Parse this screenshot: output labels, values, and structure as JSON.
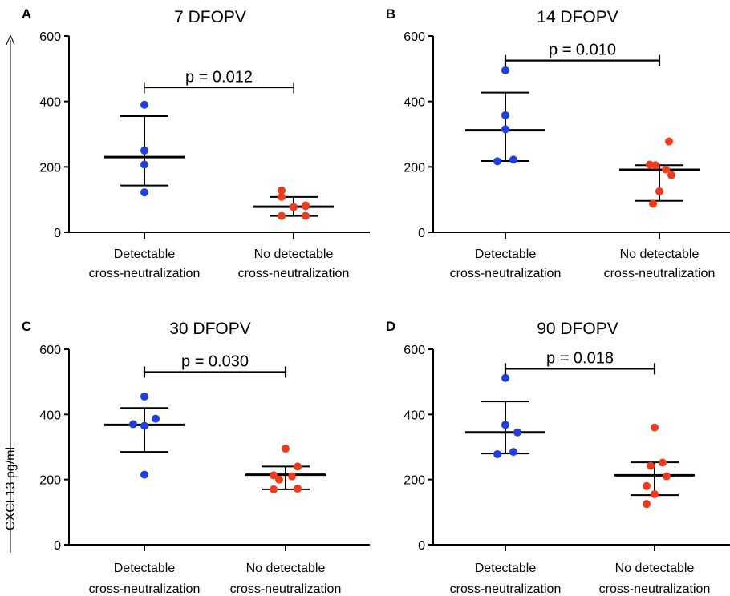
{
  "figure": {
    "ylabel": "CXCL13 pg/ml"
  },
  "chart_data": [
    {
      "type": "scatter",
      "panel_letter": "A",
      "title": "7 DFOPV",
      "ylim": [
        0,
        600
      ],
      "yticks": [
        "0",
        "200",
        "400",
        "600"
      ],
      "categories": [
        [
          "Detectable",
          "cross-neutralization"
        ],
        [
          "No detectable",
          "cross-neutralization"
        ]
      ],
      "series": [
        {
          "name": "Detectable cross-neutralization",
          "color": "#1f3fe6",
          "values": [
            390,
            250,
            207,
            122
          ],
          "mean": 230,
          "sd_low": 143,
          "sd_high": 355
        },
        {
          "name": "No detectable cross-neutralization",
          "color": "#f23a1a",
          "values": [
            128,
            108,
            82,
            80,
            77,
            50,
            50
          ],
          "mean": 78,
          "sd_low": 50,
          "sd_high": 108
        }
      ],
      "annotation": "p = 0.012",
      "bracket_y": 442,
      "bracket_style": "thin"
    },
    {
      "type": "scatter",
      "panel_letter": "B",
      "title": "14 DFOPV",
      "ylim": [
        0,
        600
      ],
      "yticks": [
        "0",
        "200",
        "400",
        "600"
      ],
      "categories": [
        [
          "Detectable",
          "cross-neutralization"
        ],
        [
          "No detectable",
          "cross-neutralization"
        ]
      ],
      "series": [
        {
          "name": "Detectable cross-neutralization",
          "color": "#1f3fe6",
          "values": [
            495,
            358,
            315,
            222,
            217
          ],
          "mean": 312,
          "sd_low": 218,
          "sd_high": 427
        },
        {
          "name": "No detectable cross-neutralization",
          "color": "#f23a1a",
          "values": [
            278,
            207,
            205,
            192,
            175,
            125,
            87
          ],
          "mean": 191,
          "sd_low": 96,
          "sd_high": 205
        }
      ],
      "annotation": "p = 0.010",
      "bracket_y": 525,
      "bracket_style": "thick"
    },
    {
      "type": "scatter",
      "panel_letter": "C",
      "title": "30 DFOPV",
      "ylim": [
        0,
        600
      ],
      "yticks": [
        "0",
        "200",
        "400",
        "600"
      ],
      "categories": [
        [
          "Detectable",
          "cross-neutralization"
        ],
        [
          "No detectable",
          "cross-neutralization"
        ]
      ],
      "series": [
        {
          "name": "Detectable cross-neutralization",
          "color": "#1f3fe6",
          "values": [
            455,
            387,
            370,
            365,
            215
          ],
          "mean": 368,
          "sd_low": 285,
          "sd_high": 420
        },
        {
          "name": "No detectable cross-neutralization",
          "color": "#f23a1a",
          "values": [
            295,
            240,
            213,
            210,
            200,
            172,
            170
          ],
          "mean": 215,
          "sd_low": 170,
          "sd_high": 240
        },
        {
          "name": "",
          "color": "#1f3fe6",
          "values": []
        }
      ],
      "annotation": "p = 0.030",
      "bracket_y": 530,
      "bracket_style": "thick"
    },
    {
      "type": "scatter",
      "panel_letter": "D",
      "title": "90 DFOPV",
      "ylim": [
        0,
        600
      ],
      "yticks": [
        "0",
        "200",
        "400",
        "600"
      ],
      "categories": [
        [
          "Detectable",
          "cross-neutralization"
        ],
        [
          "No detectable",
          "cross-neutralization"
        ]
      ],
      "series": [
        {
          "name": "Detectable cross-neutralization",
          "color": "#1f3fe6",
          "values": [
            512,
            368,
            345,
            285,
            278
          ],
          "mean": 345,
          "sd_low": 280,
          "sd_high": 440
        },
        {
          "name": "No detectable cross-neutralization",
          "color": "#f23a1a",
          "values": [
            360,
            252,
            242,
            210,
            180,
            155,
            125
          ],
          "mean": 213,
          "sd_low": 152,
          "sd_high": 253
        }
      ],
      "annotation": "p = 0.018",
      "bracket_y": 540,
      "bracket_style": "thick"
    }
  ]
}
